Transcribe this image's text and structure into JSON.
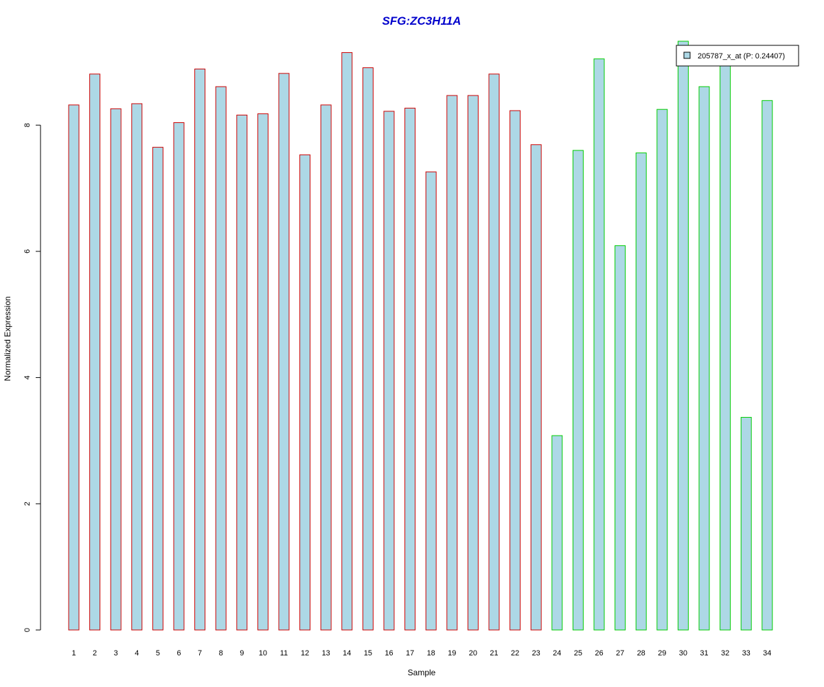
{
  "chart_data": {
    "type": "bar",
    "title": "SFG:ZC3H11A",
    "xlabel": "Sample",
    "ylabel": "Normalized Expression",
    "categories": [
      "1",
      "2",
      "3",
      "4",
      "5",
      "6",
      "7",
      "8",
      "9",
      "10",
      "11",
      "12",
      "13",
      "14",
      "15",
      "16",
      "17",
      "18",
      "19",
      "20",
      "21",
      "22",
      "23",
      "24",
      "25",
      "26",
      "27",
      "28",
      "29",
      "30",
      "31",
      "32",
      "33",
      "34"
    ],
    "series": [
      {
        "name": "205787_x_at (P: 0.24407)",
        "values": [
          8.32,
          8.81,
          8.26,
          8.34,
          7.65,
          8.04,
          8.89,
          8.61,
          8.16,
          8.18,
          8.82,
          7.53,
          8.32,
          9.15,
          8.91,
          8.22,
          8.27,
          7.26,
          8.47,
          8.47,
          8.81,
          8.23,
          7.69,
          3.08,
          7.6,
          9.05,
          6.09,
          7.56,
          8.25,
          9.33,
          8.61,
          9.02,
          3.37,
          8.39
        ]
      }
    ],
    "yticks": [
      0,
      2,
      4,
      6,
      8
    ],
    "ylim": [
      0,
      9.33
    ],
    "legend_position": "top-right",
    "grid": false,
    "colors": {
      "title": "#0000cc",
      "bar_fill": "#add8e6",
      "group1_border": "#cc0000",
      "group2_border": "#00cc00",
      "group1_samples": "1-23",
      "group2_samples": "24-34"
    }
  }
}
